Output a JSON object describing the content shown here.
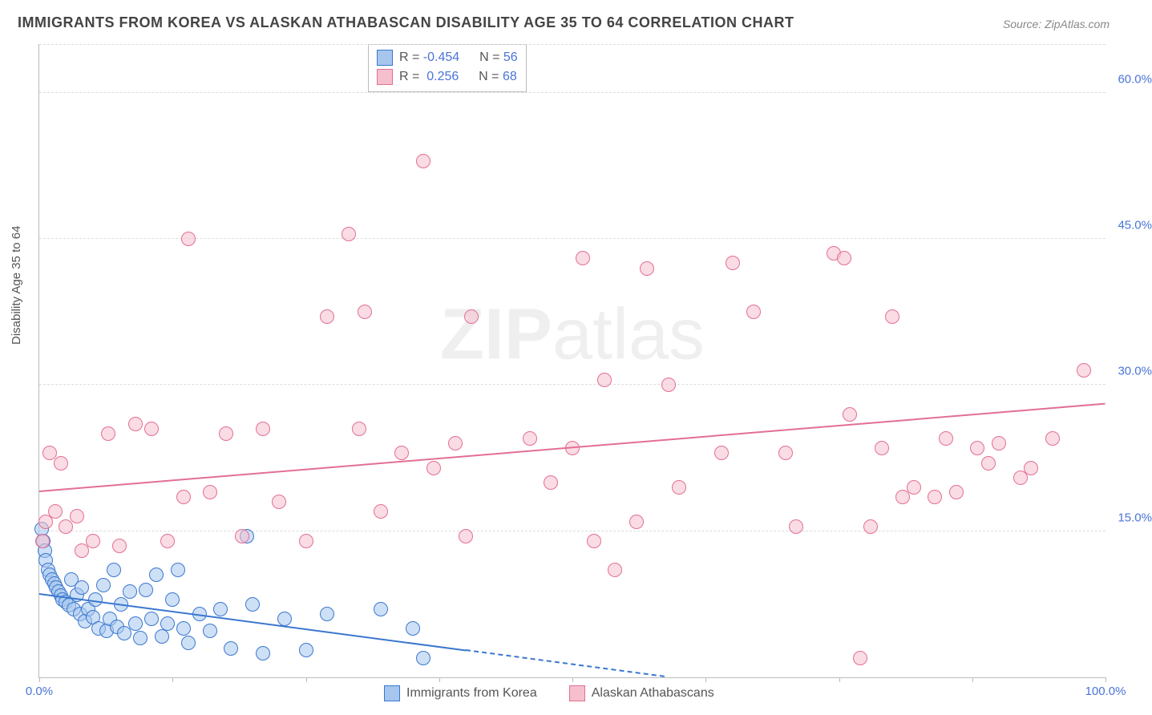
{
  "title": "IMMIGRANTS FROM KOREA VS ALASKAN ATHABASCAN DISABILITY AGE 35 TO 64 CORRELATION CHART",
  "source": "Source: ZipAtlas.com",
  "y_axis_label": "Disability Age 35 to 64",
  "watermark_bold": "ZIP",
  "watermark_rest": "atlas",
  "chart": {
    "type": "scatter",
    "background_color": "#ffffff",
    "grid_color": "#dddddd",
    "axis_color": "#bbbbbb",
    "tick_label_color": "#4a74d8",
    "xlim": [
      0,
      100
    ],
    "ylim": [
      0,
      65
    ],
    "x_ticks": [
      0,
      12.5,
      25,
      37.5,
      50,
      62.5,
      75,
      87.5,
      100
    ],
    "x_tick_labels": {
      "0": "0.0%",
      "100": "100.0%"
    },
    "y_ticks": [
      15,
      30,
      45,
      60
    ],
    "y_tick_labels": {
      "15": "15.0%",
      "30": "30.0%",
      "45": "45.0%",
      "60": "60.0%"
    },
    "series": [
      {
        "id": "korea",
        "label": "Immigrants from Korea",
        "fill": "#a6c6ee",
        "fill_opacity": 0.55,
        "stroke": "#3b77cf",
        "marker_radius": 9,
        "trend": {
          "color": "#3b77cf",
          "y_at_x0": 8.5,
          "y_at_x100": -6.0,
          "solid_until_x": 40
        },
        "R": "-0.454",
        "N": "56",
        "points": [
          {
            "x": 0.2,
            "y": 15.2
          },
          {
            "x": 0.4,
            "y": 14.0
          },
          {
            "x": 0.5,
            "y": 13.0
          },
          {
            "x": 0.6,
            "y": 12.0
          },
          {
            "x": 0.8,
            "y": 11.0
          },
          {
            "x": 1.0,
            "y": 10.5
          },
          {
            "x": 1.2,
            "y": 10.0
          },
          {
            "x": 1.4,
            "y": 9.6
          },
          {
            "x": 1.6,
            "y": 9.2
          },
          {
            "x": 1.8,
            "y": 8.8
          },
          {
            "x": 2.0,
            "y": 8.4
          },
          {
            "x": 2.2,
            "y": 8.0
          },
          {
            "x": 2.5,
            "y": 7.7
          },
          {
            "x": 2.8,
            "y": 7.4
          },
          {
            "x": 3.0,
            "y": 10.0
          },
          {
            "x": 3.2,
            "y": 7.0
          },
          {
            "x": 3.5,
            "y": 8.5
          },
          {
            "x": 3.8,
            "y": 6.5
          },
          {
            "x": 4.0,
            "y": 9.2
          },
          {
            "x": 4.3,
            "y": 5.8
          },
          {
            "x": 4.6,
            "y": 7.0
          },
          {
            "x": 5.0,
            "y": 6.2
          },
          {
            "x": 5.3,
            "y": 8.0
          },
          {
            "x": 5.6,
            "y": 5.0
          },
          {
            "x": 6.0,
            "y": 9.5
          },
          {
            "x": 6.3,
            "y": 4.8
          },
          {
            "x": 6.6,
            "y": 6.0
          },
          {
            "x": 7.0,
            "y": 11.0
          },
          {
            "x": 7.3,
            "y": 5.2
          },
          {
            "x": 7.7,
            "y": 7.5
          },
          {
            "x": 8.0,
            "y": 4.5
          },
          {
            "x": 8.5,
            "y": 8.8
          },
          {
            "x": 9.0,
            "y": 5.5
          },
          {
            "x": 9.5,
            "y": 4.0
          },
          {
            "x": 10.0,
            "y": 9.0
          },
          {
            "x": 10.5,
            "y": 6.0
          },
          {
            "x": 11.0,
            "y": 10.5
          },
          {
            "x": 11.5,
            "y": 4.2
          },
          {
            "x": 12.0,
            "y": 5.5
          },
          {
            "x": 12.5,
            "y": 8.0
          },
          {
            "x": 13.0,
            "y": 11.0
          },
          {
            "x": 13.5,
            "y": 5.0
          },
          {
            "x": 14.0,
            "y": 3.5
          },
          {
            "x": 15.0,
            "y": 6.5
          },
          {
            "x": 16.0,
            "y": 4.8
          },
          {
            "x": 17.0,
            "y": 7.0
          },
          {
            "x": 18.0,
            "y": 3.0
          },
          {
            "x": 19.5,
            "y": 14.5
          },
          {
            "x": 20.0,
            "y": 7.5
          },
          {
            "x": 21.0,
            "y": 2.5
          },
          {
            "x": 23.0,
            "y": 6.0
          },
          {
            "x": 25.0,
            "y": 2.8
          },
          {
            "x": 27.0,
            "y": 6.5
          },
          {
            "x": 32.0,
            "y": 7.0
          },
          {
            "x": 35.0,
            "y": 5.0
          },
          {
            "x": 36.0,
            "y": 2.0
          }
        ]
      },
      {
        "id": "athabascan",
        "label": "Alaskan Athabascans",
        "fill": "#f6bfce",
        "fill_opacity": 0.55,
        "stroke": "#e36f93",
        "marker_radius": 9,
        "trend": {
          "color": "#e36f93",
          "y_at_x0": 19.0,
          "y_at_x100": 28.0,
          "solid_until_x": 100
        },
        "R": "0.256",
        "N": "68",
        "points": [
          {
            "x": 0.3,
            "y": 14.0
          },
          {
            "x": 0.6,
            "y": 16.0
          },
          {
            "x": 1.0,
            "y": 23.0
          },
          {
            "x": 1.5,
            "y": 17.0
          },
          {
            "x": 2.0,
            "y": 22.0
          },
          {
            "x": 2.5,
            "y": 15.5
          },
          {
            "x": 3.5,
            "y": 16.5
          },
          {
            "x": 4.0,
            "y": 13.0
          },
          {
            "x": 5.0,
            "y": 14.0
          },
          {
            "x": 6.5,
            "y": 25.0
          },
          {
            "x": 7.5,
            "y": 13.5
          },
          {
            "x": 9.0,
            "y": 26.0
          },
          {
            "x": 10.5,
            "y": 25.5
          },
          {
            "x": 12.0,
            "y": 14.0
          },
          {
            "x": 13.5,
            "y": 18.5
          },
          {
            "x": 14.0,
            "y": 45.0
          },
          {
            "x": 16.0,
            "y": 19.0
          },
          {
            "x": 17.5,
            "y": 25.0
          },
          {
            "x": 19.0,
            "y": 14.5
          },
          {
            "x": 21.0,
            "y": 25.5
          },
          {
            "x": 22.5,
            "y": 18.0
          },
          {
            "x": 25.0,
            "y": 14.0
          },
          {
            "x": 27.0,
            "y": 37.0
          },
          {
            "x": 29.0,
            "y": 45.5
          },
          {
            "x": 30.0,
            "y": 25.5
          },
          {
            "x": 30.5,
            "y": 37.5
          },
          {
            "x": 32.0,
            "y": 17.0
          },
          {
            "x": 34.0,
            "y": 23.0
          },
          {
            "x": 36.0,
            "y": 53.0
          },
          {
            "x": 37.0,
            "y": 21.5
          },
          {
            "x": 39.0,
            "y": 24.0
          },
          {
            "x": 40.0,
            "y": 14.5
          },
          {
            "x": 40.5,
            "y": 37.0
          },
          {
            "x": 46.0,
            "y": 24.5
          },
          {
            "x": 48.0,
            "y": 20.0
          },
          {
            "x": 50.0,
            "y": 23.5
          },
          {
            "x": 51.0,
            "y": 43.0
          },
          {
            "x": 52.0,
            "y": 14.0
          },
          {
            "x": 53.0,
            "y": 30.5
          },
          {
            "x": 54.0,
            "y": 11.0
          },
          {
            "x": 56.0,
            "y": 16.0
          },
          {
            "x": 57.0,
            "y": 42.0
          },
          {
            "x": 59.0,
            "y": 30.0
          },
          {
            "x": 60.0,
            "y": 19.5
          },
          {
            "x": 64.0,
            "y": 23.0
          },
          {
            "x": 65.0,
            "y": 42.5
          },
          {
            "x": 67.0,
            "y": 37.5
          },
          {
            "x": 70.0,
            "y": 23.0
          },
          {
            "x": 71.0,
            "y": 15.5
          },
          {
            "x": 74.5,
            "y": 43.5
          },
          {
            "x": 75.5,
            "y": 43.0
          },
          {
            "x": 76.0,
            "y": 27.0
          },
          {
            "x": 77.0,
            "y": 2.0
          },
          {
            "x": 78.0,
            "y": 15.5
          },
          {
            "x": 79.0,
            "y": 23.5
          },
          {
            "x": 80.0,
            "y": 37.0
          },
          {
            "x": 81.0,
            "y": 18.5
          },
          {
            "x": 82.0,
            "y": 19.5
          },
          {
            "x": 84.0,
            "y": 18.5
          },
          {
            "x": 85.0,
            "y": 24.5
          },
          {
            "x": 86.0,
            "y": 19.0
          },
          {
            "x": 88.0,
            "y": 23.5
          },
          {
            "x": 89.0,
            "y": 22.0
          },
          {
            "x": 90.0,
            "y": 24.0
          },
          {
            "x": 92.0,
            "y": 20.5
          },
          {
            "x": 93.0,
            "y": 21.5
          },
          {
            "x": 95.0,
            "y": 24.5
          },
          {
            "x": 98.0,
            "y": 31.5
          }
        ]
      }
    ]
  },
  "legend": {
    "r_label": "R =",
    "n_label": "N ="
  }
}
